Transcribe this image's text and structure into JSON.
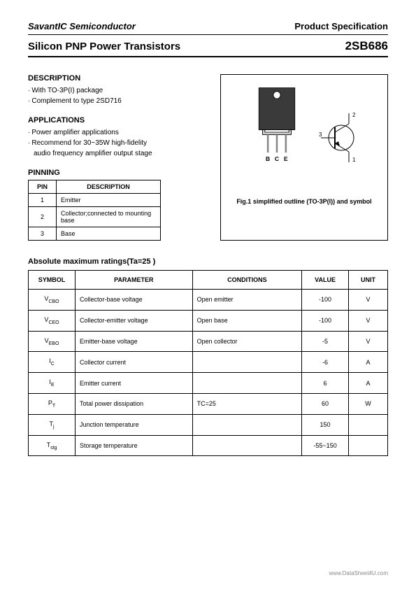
{
  "header": {
    "company": "SavantIC Semiconductor",
    "spec": "Product Specification",
    "title": "Silicon PNP Power Transistors",
    "part": "2SB686"
  },
  "description": {
    "heading": "DESCRIPTION",
    "items": [
      "With TO-3P(I) package",
      "Complement to type 2SD716"
    ]
  },
  "applications": {
    "heading": "APPLICATIONS",
    "items": [
      "Power amplifier applications",
      "Recommend for 30~35W high-fidelity",
      "audio frequency amplifier output stage"
    ]
  },
  "pinning": {
    "heading": "PINNING",
    "cols": [
      "PIN",
      "DESCRIPTION"
    ],
    "rows": [
      {
        "pin": "1",
        "desc": "Emitter"
      },
      {
        "pin": "2",
        "desc": "Collector;connected to mounting base"
      },
      {
        "pin": "3",
        "desc": "Base"
      }
    ]
  },
  "figure": {
    "pin_labels": [
      "B",
      "C",
      "E"
    ],
    "sym_labels": {
      "base": "3",
      "collector": "2",
      "emitter": "1"
    },
    "caption": "Fig.1 simplified outline (TO-3P(I)) and symbol"
  },
  "abs_ratings": {
    "heading": "Absolute maximum ratings(Ta=25 )",
    "cols": [
      "SYMBOL",
      "PARAMETER",
      "CONDITIONS",
      "VALUE",
      "UNIT"
    ],
    "rows": [
      {
        "sym": "V",
        "sub": "CBO",
        "param": "Collector-base voltage",
        "cond": "Open emitter",
        "val": "-100",
        "unit": "V"
      },
      {
        "sym": "V",
        "sub": "CEO",
        "param": "Collector-emitter voltage",
        "cond": "Open base",
        "val": "-100",
        "unit": "V"
      },
      {
        "sym": "V",
        "sub": "EBO",
        "param": "Emitter-base voltage",
        "cond": "Open collector",
        "val": "-5",
        "unit": "V"
      },
      {
        "sym": "I",
        "sub": "C",
        "param": "Collector current",
        "cond": "",
        "val": "-6",
        "unit": "A"
      },
      {
        "sym": "I",
        "sub": "E",
        "param": "Emitter current",
        "cond": "",
        "val": "6",
        "unit": "A"
      },
      {
        "sym": "P",
        "sub": "T",
        "param": "Total power dissipation",
        "cond": "TC=25",
        "val": "60",
        "unit": "W"
      },
      {
        "sym": "T",
        "sub": "j",
        "param": "Junction temperature",
        "cond": "",
        "val": "150",
        "unit": ""
      },
      {
        "sym": "T",
        "sub": "stg",
        "param": "Storage temperature",
        "cond": "",
        "val": "-55~150",
        "unit": ""
      }
    ]
  },
  "footer": "www.DataSheet4U.com"
}
